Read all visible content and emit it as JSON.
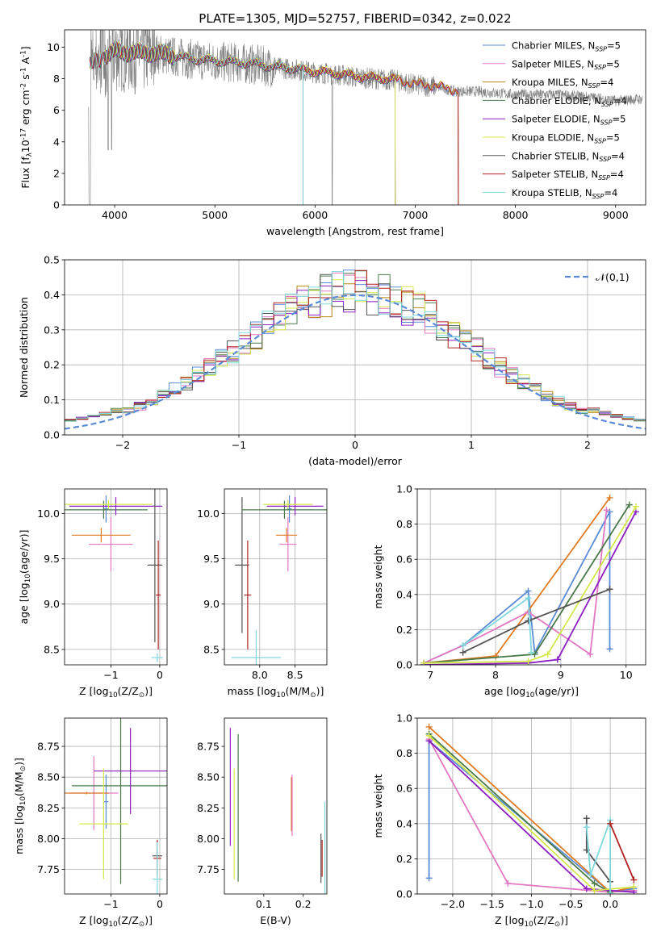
{
  "colors": {
    "chabrier_miles": "#5b8bd6",
    "salpeter_miles": "#e377c2",
    "kroupa_miles": "#b8860b",
    "chabrier_elodie": "#4a7a4a",
    "salpeter_elodie": "#8b1fc2",
    "kroupa_elodie": "#d4e84a",
    "chabrier_stelib": "#555555",
    "salpeter_stelib": "#b22222",
    "kroupa_stelib": "#7fd8dc",
    "orange": "#e07b24",
    "data_grey": "#808080",
    "normal": "#5b8bd6"
  },
  "chart_data": [
    {
      "id": "spectrum",
      "type": "line",
      "title": "PLATE=1305, MJD=52757, FIBERID=0342, z=0.022",
      "xlabel": "wavelength [Angstrom, rest frame]",
      "ylabel": "Flux [f$_\\lambda$10$^{-17}$ erg cm$^{-2}$ s$^{-1}$ A$^{-1}$]",
      "xlim": [
        3500,
        9300
      ],
      "ylim": [
        0,
        11.1
      ],
      "xticks": [
        4000,
        5000,
        6000,
        7000,
        8000,
        9000
      ],
      "yticks": [
        0,
        2,
        4,
        6,
        8,
        10
      ],
      "grid": false,
      "legend_position": "top-right",
      "legend": [
        "Chabrier MILES, N$_{SSP}$=5",
        "Salpeter MILES, N$_{SSP}$=5",
        "Kroupa MILES, N$_{SSP}$=4",
        "Chabrier ELODIE, N$_{SSP}$=4",
        "Salpeter ELODIE, N$_{SSP}$=5",
        "Kroupa ELODIE, N$_{SSP}$=5",
        "Chabrier STELIB, N$_{SSP}$=4",
        "Salpeter STELIB, N$_{SSP}$=4",
        "Kroupa STELIB, N$_{SSP}$=4"
      ],
      "legend_keys": [
        "chabrier_miles",
        "salpeter_miles",
        "kroupa_miles",
        "chabrier_elodie",
        "salpeter_elodie",
        "kroupa_elodie",
        "chabrier_stelib",
        "salpeter_stelib",
        "kroupa_stelib"
      ],
      "continuum": {
        "x": [
          3750,
          3900,
          4000,
          4200,
          4400,
          4600,
          4800,
          5000,
          5200,
          5400,
          5600,
          5800,
          6000,
          6200,
          6400,
          6600,
          6800,
          7000,
          7200,
          7400,
          7600,
          7800,
          8000,
          8200,
          8400,
          8600,
          8800,
          9000,
          9200
        ],
        "y": [
          8.8,
          9.4,
          9.7,
          9.6,
          9.6,
          9.4,
          9.2,
          9.1,
          9.0,
          8.9,
          8.7,
          8.6,
          8.4,
          8.3,
          8.1,
          8.0,
          7.9,
          7.6,
          7.5,
          7.2,
          7.2,
          7.1,
          7.0,
          7.0,
          7.0,
          6.9,
          6.8,
          6.6,
          6.7
        ]
      },
      "model_ranges": [
        {
          "key": "chabrier_miles",
          "x": [
            3750,
            7430
          ]
        },
        {
          "key": "salpeter_miles",
          "x": [
            3750,
            7430
          ]
        },
        {
          "key": "kroupa_miles",
          "x": [
            3750,
            7430
          ]
        },
        {
          "key": "chabrier_elodie",
          "x": [
            3900,
            6800
          ]
        },
        {
          "key": "salpeter_elodie",
          "x": [
            3900,
            6800
          ]
        },
        {
          "key": "kroupa_elodie",
          "x": [
            3900,
            6800
          ]
        },
        {
          "key": "chabrier_stelib",
          "x": [
            3750,
            5880
          ]
        },
        {
          "key": "salpeter_stelib",
          "x": [
            3750,
            7430
          ]
        },
        {
          "key": "kroupa_stelib",
          "x": [
            3750,
            5880
          ]
        }
      ]
    },
    {
      "id": "residuals",
      "type": "step",
      "xlabel": "(data-model)/error",
      "ylabel": "Normed distribution",
      "xlim": [
        -2.5,
        2.5
      ],
      "ylim": [
        0,
        0.5
      ],
      "xticks": [
        -2,
        -1,
        0,
        1,
        2
      ],
      "yticks": [
        0.0,
        0.1,
        0.2,
        0.3,
        0.4,
        0.5
      ],
      "grid": true,
      "legend_position": "top-right",
      "legend": [
        "$\\mathcal{N}(0,1)$"
      ],
      "bin_width": 0.1,
      "bin_start": -2.5
    },
    {
      "id": "age_vs_Z",
      "type": "errorbar",
      "xlabel": "Z [log$_{10}$(Z/Z$_\\odot$)]",
      "ylabel": "age  [log$_{10}$(age/yr)]",
      "xlim": [
        -1.95,
        0.15
      ],
      "ylim": [
        8.33,
        10.27
      ],
      "xticks": [
        -1,
        0
      ],
      "yticks": [
        8.5,
        9.0,
        9.5,
        10.0
      ],
      "grid": true,
      "points": [
        {
          "key": "chabrier_miles",
          "x": -1.1,
          "xerr": 0.05,
          "y": 10.05,
          "yerr": 0.15
        },
        {
          "key": "salpeter_miles",
          "x": -1.0,
          "xerr": 0.45,
          "y": 9.66,
          "yerr": 0.3
        },
        {
          "key": "orange",
          "x": -1.2,
          "xerr": 0.6,
          "y": 9.76,
          "yerr": 0.08
        },
        {
          "key": "chabrier_elodie",
          "x": -1.15,
          "xerr": 0.9,
          "y": 10.04,
          "yerr": 0.1
        },
        {
          "key": "salpeter_elodie",
          "x": -0.9,
          "xerr": 0.95,
          "y": 10.08,
          "yerr": 0.1
        },
        {
          "key": "kroupa_elodie",
          "x": -1.05,
          "xerr": 0.9,
          "y": 10.1,
          "yerr": 0.05
        },
        {
          "key": "chabrier_stelib",
          "x": -0.1,
          "xerr": 0.15,
          "y": 9.43,
          "yerr": 0.85
        },
        {
          "key": "salpeter_stelib",
          "x": -0.03,
          "xerr": 0.05,
          "y": 9.1,
          "yerr": 0.6
        },
        {
          "key": "kroupa_stelib",
          "x": -0.05,
          "xerr": 0.12,
          "y": 8.41,
          "yerr": 0.05
        }
      ]
    },
    {
      "id": "age_vs_mass",
      "type": "errorbar",
      "xlabel": "mass [log$_{10}$(M/M$_\\odot$)]",
      "ylabel": "",
      "xlim": [
        7.5,
        8.95
      ],
      "ylim": [
        8.33,
        10.27
      ],
      "xticks": [
        8.0,
        8.5
      ],
      "yticks": [
        8.5,
        9.0,
        9.5,
        10.0
      ],
      "grid": true,
      "points": [
        {
          "key": "chabrier_miles",
          "x": 8.42,
          "xerr": 0.03,
          "y": 10.05,
          "yerr": 0.15
        },
        {
          "key": "salpeter_miles",
          "x": 8.4,
          "xerr": 0.12,
          "y": 9.66,
          "yerr": 0.3
        },
        {
          "key": "orange",
          "x": 8.38,
          "xerr": 0.15,
          "y": 9.76,
          "yerr": 0.08
        },
        {
          "key": "chabrier_elodie",
          "x": 8.35,
          "xerr": 0.6,
          "y": 10.04,
          "yerr": 0.1
        },
        {
          "key": "salpeter_elodie",
          "x": 8.5,
          "xerr": 0.4,
          "y": 10.08,
          "yerr": 0.1
        },
        {
          "key": "kroupa_elodie",
          "x": 8.4,
          "xerr": 0.35,
          "y": 10.1,
          "yerr": 0.05
        },
        {
          "key": "chabrier_stelib",
          "x": 7.75,
          "xerr": 0.1,
          "y": 9.43,
          "yerr": 0.75
        },
        {
          "key": "salpeter_stelib",
          "x": 7.83,
          "xerr": 0.05,
          "y": 9.1,
          "yerr": 0.6
        },
        {
          "key": "kroupa_stelib",
          "x": 7.95,
          "xerr": 0.35,
          "y": 8.41,
          "yerr": 0.3
        }
      ]
    },
    {
      "id": "mass_weight_vs_age",
      "type": "line",
      "xlabel": "age  [log$_{10}$(age/yr)]",
      "ylabel": "mass weight",
      "xlim": [
        6.8,
        10.3
      ],
      "ylim": [
        0,
        1.0
      ],
      "xticks": [
        7,
        8,
        9,
        10
      ],
      "yticks": [
        0.0,
        0.2,
        0.4,
        0.6,
        0.8,
        1.0
      ],
      "grid": true,
      "series": [
        {
          "key": "chabrier_miles",
          "x": [
            6.9,
            7.5,
            8.5,
            8.6,
            9.75,
            9.75
          ],
          "y": [
            0.01,
            0.11,
            0.42,
            0.07,
            0.87,
            0.09
          ]
        },
        {
          "key": "orange",
          "x": [
            6.9,
            8.0,
            9.75
          ],
          "y": [
            0.01,
            0.05,
            0.95
          ]
        },
        {
          "key": "salpeter_miles",
          "x": [
            6.9,
            7.5,
            8.5,
            9.45,
            9.7
          ],
          "y": [
            0.01,
            0.11,
            0.3,
            0.06,
            0.88
          ]
        },
        {
          "key": "chabrier_elodie",
          "x": [
            6.9,
            8.6,
            10.05
          ],
          "y": [
            0.01,
            0.06,
            0.91
          ]
        },
        {
          "key": "salpeter_elodie",
          "x": [
            6.9,
            8.5,
            8.95,
            10.15
          ],
          "y": [
            0.0,
            0.01,
            0.03,
            0.87
          ]
        },
        {
          "key": "kroupa_elodie",
          "x": [
            6.9,
            8.5,
            8.8,
            10.15
          ],
          "y": [
            0.01,
            0.02,
            0.06,
            0.9
          ]
        },
        {
          "key": "chabrier_stelib",
          "x": [
            7.5,
            8.5,
            9.75
          ],
          "y": [
            0.07,
            0.25,
            0.43
          ]
        },
        {
          "key": "kroupa_stelib",
          "x": [
            7.5,
            8.5,
            8.55
          ],
          "y": [
            0.11,
            0.38,
            0.07
          ]
        }
      ]
    },
    {
      "id": "mass_vs_Z",
      "type": "errorbar",
      "xlabel": "Z [log$_{10}$(Z/Z$_\\odot$)]",
      "ylabel": "mass [log$_{10}$(M/M$_\\odot$)]",
      "xlim": [
        -1.95,
        0.15
      ],
      "ylim": [
        7.55,
        8.98
      ],
      "xticks": [
        -1,
        0
      ],
      "yticks": [
        7.75,
        8.0,
        8.25,
        8.5,
        8.75
      ],
      "grid": true,
      "points": [
        {
          "key": "chabrier_miles",
          "x": -1.1,
          "xerr": 0.05,
          "y": 8.3,
          "yerr": 0.22
        },
        {
          "key": "salpeter_miles",
          "x": -1.35,
          "xerr": 0.5,
          "y": 8.37,
          "yerr": 0.3
        },
        {
          "key": "orange",
          "x": -1.5,
          "xerr": 0.45,
          "y": 8.37,
          "yerr": 0.01
        },
        {
          "key": "chabrier_elodie",
          "x": -0.8,
          "xerr": 1.0,
          "y": 8.43,
          "yerr": 0.8
        },
        {
          "key": "salpeter_elodie",
          "x": -0.6,
          "xerr": 0.75,
          "y": 8.55,
          "yerr": 0.35
        },
        {
          "key": "kroupa_elodie",
          "x": -1.15,
          "xerr": 0.5,
          "y": 8.12,
          "yerr": 0.45
        },
        {
          "key": "chabrier_stelib",
          "x": -0.05,
          "xerr": 0.1,
          "y": 7.86,
          "yerr": 0.05
        },
        {
          "key": "salpeter_stelib",
          "x": -0.05,
          "xerr": 0.08,
          "y": 7.84,
          "yerr": 0.15
        },
        {
          "key": "kroupa_stelib",
          "x": -0.05,
          "xerr": 0.1,
          "y": 7.67,
          "yerr": 0.3
        }
      ]
    },
    {
      "id": "mass_vs_ebv",
      "type": "errorbar",
      "xlabel": "E(B-V)",
      "ylabel": "",
      "xlim": [
        0.0,
        0.26
      ],
      "ylim": [
        7.55,
        8.98
      ],
      "xticks": [
        0.1,
        0.2
      ],
      "yticks": [
        7.75,
        8.0,
        8.25,
        8.5,
        8.75
      ],
      "grid": false,
      "points": [
        {
          "key": "salpeter_elodie",
          "x": 0.015,
          "y": 8.42,
          "yerr": 0.48
        },
        {
          "key": "kroupa_elodie",
          "x": 0.025,
          "y": 8.12,
          "yerr": 0.45
        },
        {
          "key": "chabrier_elodie",
          "x": 0.035,
          "y": 8.25,
          "yerr": 0.6
        },
        {
          "key": "orange",
          "x": 0.17,
          "y": 8.28,
          "yerr": 0.22
        },
        {
          "key": "salpeter_miles",
          "x": 0.172,
          "y": 8.27,
          "yerr": 0.25
        },
        {
          "key": "chabrier_stelib",
          "x": 0.245,
          "y": 7.84,
          "yerr": 0.2
        },
        {
          "key": "salpeter_stelib",
          "x": 0.248,
          "y": 7.84,
          "yerr": 0.15
        },
        {
          "key": "kroupa_stelib",
          "x": 0.255,
          "y": 7.9,
          "yerr": 0.4
        }
      ]
    },
    {
      "id": "mass_weight_vs_Z",
      "type": "line",
      "xlabel": "Z [log$_{10}$(Z/Z$_\\odot$)]",
      "ylabel": "mass weight",
      "xlim": [
        -2.45,
        0.45
      ],
      "ylim": [
        0,
        1.0
      ],
      "xticks": [
        -2.0,
        -1.5,
        -1.0,
        -0.5,
        0.0
      ],
      "yticks": [
        0.0,
        0.2,
        0.4,
        0.6,
        0.8,
        1.0
      ],
      "grid": true,
      "series": [
        {
          "key": "chabrier_miles",
          "x": [
            -2.3,
            -2.3,
            0.0,
            0.3
          ],
          "y": [
            0.09,
            0.87,
            0.01,
            0.03
          ]
        },
        {
          "key": "orange",
          "x": [
            -2.3,
            0.0,
            0.3
          ],
          "y": [
            0.95,
            0.01,
            0.04
          ]
        },
        {
          "key": "salpeter_miles",
          "x": [
            -2.3,
            -1.3,
            0.0,
            0.3
          ],
          "y": [
            0.88,
            0.06,
            0.01,
            0.02
          ]
        },
        {
          "key": "chabrier_elodie",
          "x": [
            -2.3,
            -0.2,
            0.0
          ],
          "y": [
            0.91,
            0.06,
            0.01
          ]
        },
        {
          "key": "salpeter_elodie",
          "x": [
            -2.3,
            -0.3,
            0.3
          ],
          "y": [
            0.87,
            0.03,
            0.01
          ]
        },
        {
          "key": "kroupa_elodie",
          "x": [
            -2.3,
            -0.2,
            0.3
          ],
          "y": [
            0.9,
            0.02,
            0.04
          ]
        },
        {
          "key": "chabrier_stelib",
          "x": [
            -0.3,
            -0.3,
            0.0
          ],
          "y": [
            0.43,
            0.25,
            0.07
          ]
        },
        {
          "key": "kroupa_stelib",
          "x": [
            -0.3,
            -0.25,
            0.0,
            0.0
          ],
          "y": [
            0.38,
            0.11,
            0.42,
            0.0
          ]
        },
        {
          "key": "salpeter_stelib",
          "x": [
            0.0,
            0.3
          ],
          "y": [
            0.4,
            0.08
          ]
        }
      ]
    }
  ]
}
